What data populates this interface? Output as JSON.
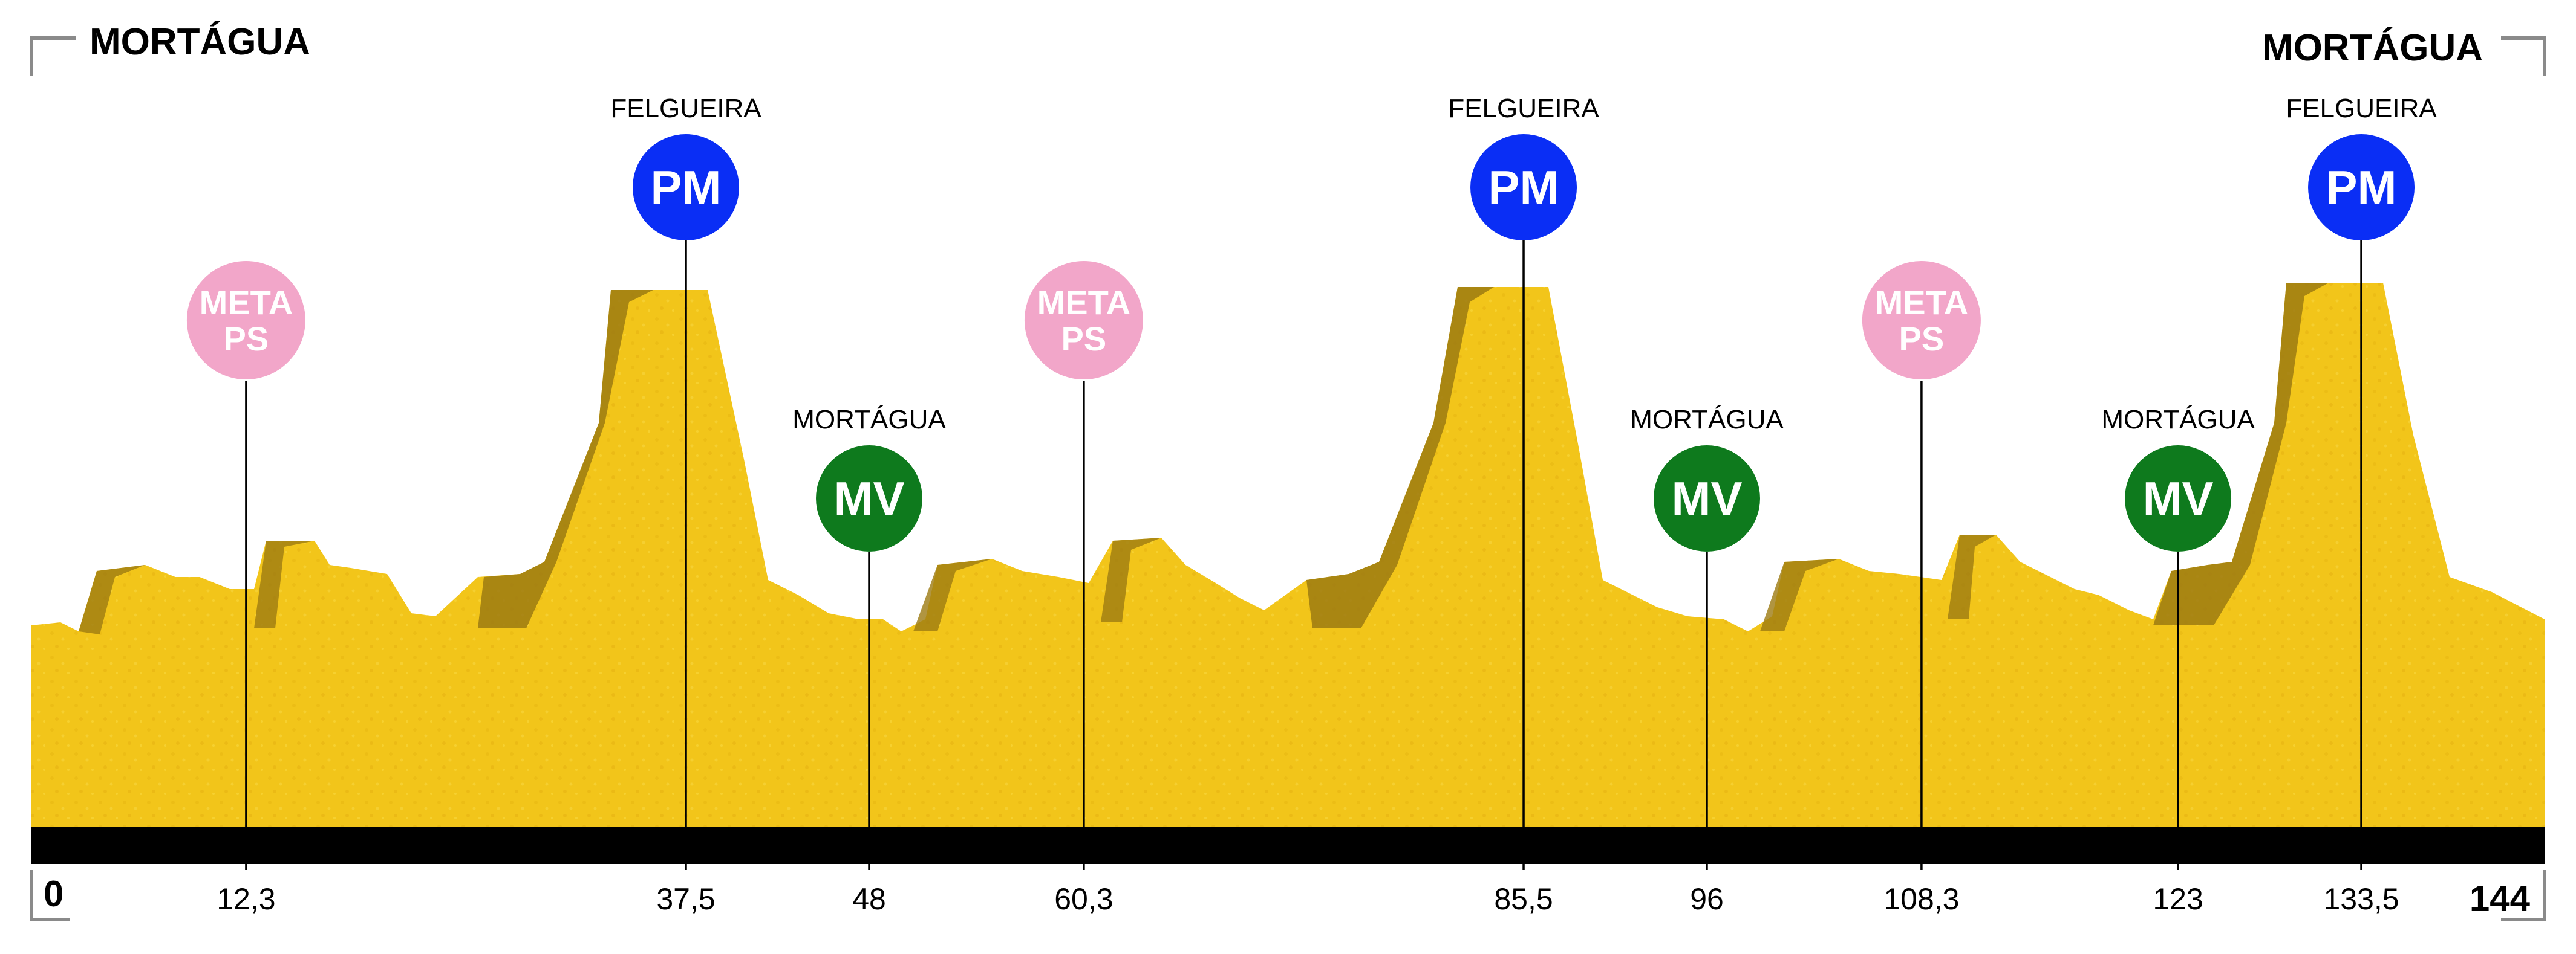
{
  "profile": {
    "start_town": "MORTÁGUA",
    "finish_town": "MORTÁGUA",
    "distance_start": "0",
    "distance_end": "144",
    "colors": {
      "terrain_fill": "#f2c51a",
      "terrain_shadow": "#9c7a12",
      "baseline_bar": "#000000",
      "frame": "#8a8a8a",
      "meta_ps_badge": "#f2a6c9",
      "pm_badge": "#0a2ef5",
      "mv_badge": "#0e7a1d"
    },
    "markers": [
      {
        "km": 12.3,
        "km_label": "12,3",
        "type": "meta-ps",
        "line1": "META",
        "line2": "PS",
        "place": ""
      },
      {
        "km": 37.5,
        "km_label": "37,5",
        "type": "pm",
        "line1": "PM",
        "line2": "",
        "place": "FELGUEIRA"
      },
      {
        "km": 48,
        "km_label": "48",
        "type": "mv",
        "line1": "MV",
        "line2": "",
        "place": "MORTÁGUA"
      },
      {
        "km": 60.3,
        "km_label": "60,3",
        "type": "meta-ps",
        "line1": "META",
        "line2": "PS",
        "place": ""
      },
      {
        "km": 85.5,
        "km_label": "85,5",
        "type": "pm",
        "line1": "PM",
        "line2": "",
        "place": "FELGUEIRA"
      },
      {
        "km": 96,
        "km_label": "96",
        "type": "mv",
        "line1": "MV",
        "line2": "",
        "place": "MORTÁGUA"
      },
      {
        "km": 108.3,
        "km_label": "108,3",
        "type": "meta-ps",
        "line1": "META",
        "line2": "PS",
        "place": ""
      },
      {
        "km": 123,
        "km_label": "123",
        "type": "mv",
        "line1": "MV",
        "line2": "",
        "place": "MORTÁGUA"
      },
      {
        "km": 133.5,
        "km_label": "133,5",
        "type": "pm",
        "line1": "PM",
        "line2": "",
        "place": "FELGUEIRA"
      }
    ]
  }
}
